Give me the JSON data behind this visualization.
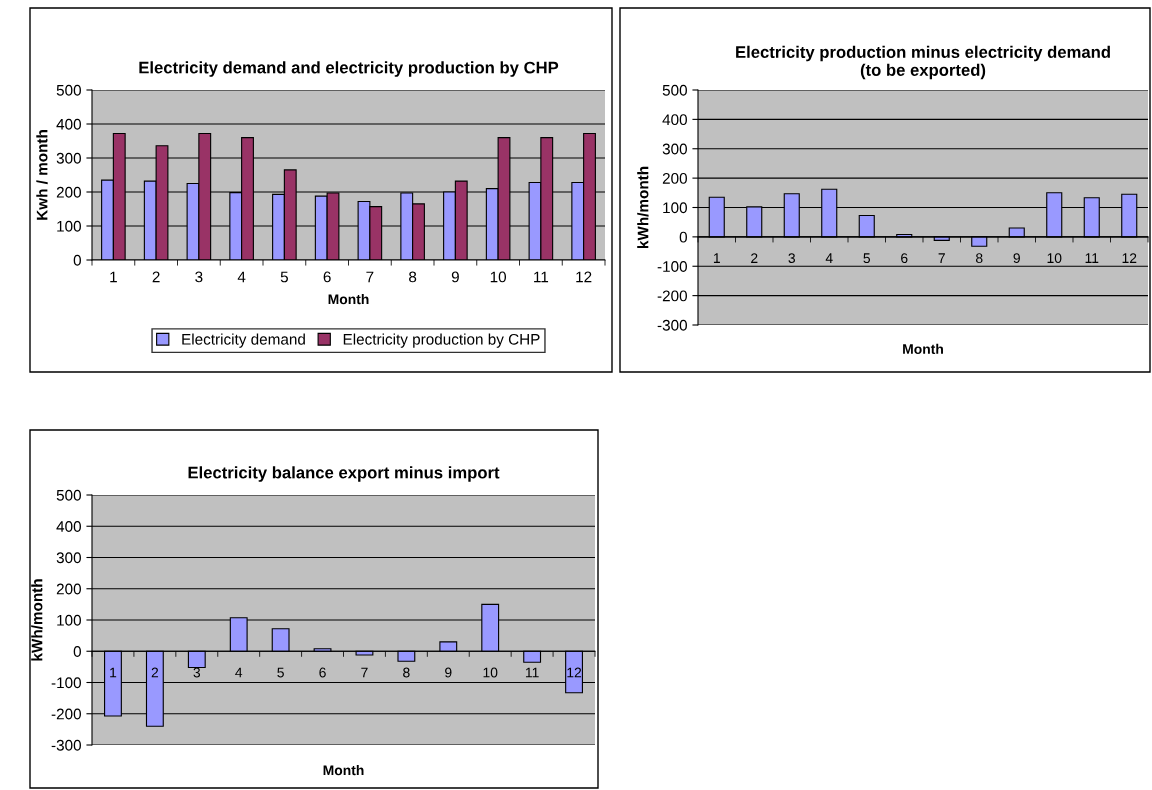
{
  "chart_data": [
    {
      "type": "bar",
      "title": "Electricity demand and electricity production by CHP",
      "xlabel": "Month",
      "ylabel": "Kwh / month",
      "categories": [
        "1",
        "2",
        "3",
        "4",
        "5",
        "6",
        "7",
        "8",
        "9",
        "10",
        "11",
        "12"
      ],
      "series": [
        {
          "name": "Electricity demand",
          "color": "#9999ff",
          "values": [
            235,
            232,
            225,
            198,
            193,
            188,
            172,
            197,
            200,
            210,
            228,
            228
          ]
        },
        {
          "name": "Electricity production by CHP",
          "color": "#993366",
          "values": [
            372,
            336,
            372,
            360,
            265,
            197,
            157,
            165,
            232,
            360,
            360,
            372
          ]
        }
      ],
      "ylim": [
        0,
        500
      ],
      "yticks": [
        0,
        100,
        200,
        300,
        400,
        500
      ],
      "grid": "y",
      "legend": "bottom"
    },
    {
      "type": "bar",
      "title": "Electricity production minus electricity demand\n(to be exported)",
      "xlabel": "Month",
      "ylabel": "kWh/month",
      "categories": [
        "1",
        "2",
        "3",
        "4",
        "5",
        "6",
        "7",
        "8",
        "9",
        "10",
        "11",
        "12"
      ],
      "series": [
        {
          "color": "#9999ff",
          "values": [
            135,
            102,
            147,
            162,
            73,
            8,
            -12,
            -32,
            30,
            150,
            133,
            145
          ]
        }
      ],
      "ylim": [
        -300,
        500
      ],
      "yticks": [
        -300,
        -200,
        -100,
        0,
        100,
        200,
        300,
        400,
        500
      ],
      "grid": "y"
    },
    {
      "type": "bar",
      "title": "Electricity balance export minus import",
      "xlabel": "Month",
      "ylabel": "kWh/month",
      "categories": [
        "1",
        "2",
        "3",
        "4",
        "5",
        "6",
        "7",
        "8",
        "9",
        "10",
        "11",
        "12"
      ],
      "series": [
        {
          "color": "#9999ff",
          "values": [
            -207,
            -240,
            -52,
            107,
            72,
            8,
            -12,
            -32,
            30,
            150,
            -35,
            -133
          ]
        }
      ],
      "ylim": [
        -300,
        500
      ],
      "yticks": [
        -300,
        -200,
        -100,
        0,
        100,
        200,
        300,
        400,
        500
      ],
      "grid": "y"
    }
  ]
}
